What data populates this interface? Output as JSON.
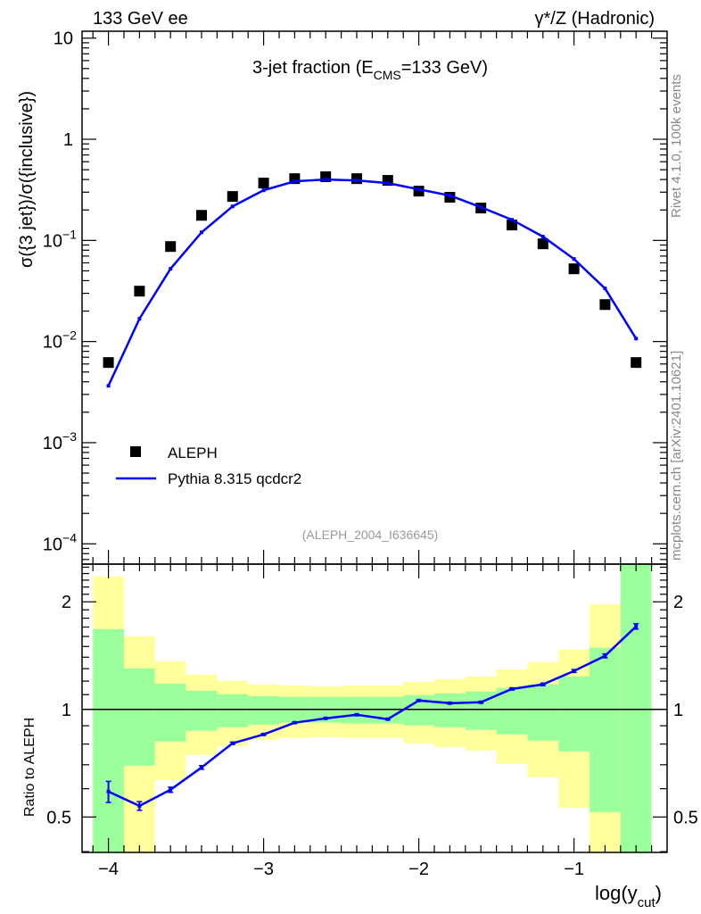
{
  "header": {
    "left": "133 GeV ee",
    "right": "γ*/Z (Hadronic)"
  },
  "side_text": {
    "rivet": "Rivet 4.1.0,  100k events",
    "mcplots": "mcplots.cern.ch [arXiv:2401.10621]"
  },
  "watermark": "(ALEPH_2004_I636645)",
  "colors": {
    "data": "#000000",
    "mc": "#0000ff",
    "stat_band": "#9bff9b",
    "total_band": "#ffff9b"
  },
  "chart_data": [
    {
      "type": "scatter",
      "title_main": "3-jet fraction (E",
      "title_sub": "CMS",
      "title_end": "=133 GeV)",
      "ylabel": "σ({3 jet})/σ({inclusive})",
      "yscale": "log",
      "ylim": [
        6.3e-05,
        11.7
      ],
      "xlim": [
        -4.17,
        -0.4
      ],
      "ytick_labels": [
        {
          "value": 10,
          "label": "10"
        },
        {
          "value": 1,
          "label": "1"
        },
        {
          "value": 0.1,
          "label": "10",
          "exp": "−1"
        },
        {
          "value": 0.01,
          "label": "10",
          "exp": "−2"
        },
        {
          "value": 0.001,
          "label": "10",
          "exp": "−3"
        },
        {
          "value": 0.0001,
          "label": "10",
          "exp": "−4"
        }
      ],
      "legend": {
        "position": "bottom-left",
        "entries": [
          "ALEPH",
          "Pythia 8.315 qcdcr2"
        ]
      },
      "x": [
        -4.0,
        -3.8,
        -3.6,
        -3.4,
        -3.2,
        -3.0,
        -2.8,
        -2.6,
        -2.4,
        -2.2,
        -2.0,
        -1.8,
        -1.6,
        -1.4,
        -1.2,
        -1.0,
        -0.8,
        -0.6
      ],
      "series": [
        {
          "name": "ALEPH",
          "values": [
            0.0062,
            0.0315,
            0.087,
            0.177,
            0.272,
            0.369,
            0.408,
            0.426,
            0.408,
            0.392,
            0.307,
            0.267,
            0.209,
            0.142,
            0.0925,
            0.0524,
            0.0232,
            0.0062
          ]
        },
        {
          "name": "Pythia 8.315 qcdcr2",
          "values": [
            0.00365,
            0.0168,
            0.0524,
            0.12,
            0.217,
            0.313,
            0.384,
            0.4,
            0.392,
            0.369,
            0.32,
            0.278,
            0.213,
            0.16,
            0.109,
            0.0655,
            0.0335,
            0.0107
          ]
        }
      ]
    },
    {
      "type": "line",
      "ylabel": "Ratio to ALEPH",
      "xlabel_main": "log(y",
      "xlabel_sub": "cut",
      "xlabel_end": ")",
      "yscale": "log",
      "ylim": [
        0.398,
        2.55
      ],
      "xlim": [
        -4.17,
        -0.4
      ],
      "xtick_labels": [
        {
          "value": -4,
          "label": "−4"
        },
        {
          "value": -3,
          "label": "−3"
        },
        {
          "value": -2,
          "label": "−2"
        },
        {
          "value": -1,
          "label": "−1"
        }
      ],
      "ytick_labels": [
        {
          "value": 2,
          "label": "2"
        },
        {
          "value": 1,
          "label": "1"
        },
        {
          "value": 0.5,
          "label": "0.5"
        }
      ],
      "bin_edges": [
        -4.1,
        -3.9,
        -3.7,
        -3.5,
        -3.3,
        -3.1,
        -2.9,
        -2.7,
        -2.5,
        -2.3,
        -2.1,
        -1.9,
        -1.7,
        -1.5,
        -1.3,
        -1.1,
        -0.9,
        -0.7,
        -0.5
      ],
      "total_band_upper": [
        2.357,
        1.602,
        1.364,
        1.252,
        1.202,
        1.175,
        1.168,
        1.161,
        1.168,
        1.168,
        1.195,
        1.216,
        1.237,
        1.295,
        1.357,
        1.47,
        1.971,
        3.0
      ],
      "total_band_lower": [
        0.3,
        0.3,
        0.635,
        0.746,
        0.79,
        0.822,
        0.832,
        0.837,
        0.832,
        0.832,
        0.804,
        0.785,
        0.767,
        0.704,
        0.646,
        0.531,
        0.3,
        0.3
      ],
      "stat_band_upper": [
        1.678,
        1.303,
        1.181,
        1.128,
        1.103,
        1.09,
        1.084,
        1.084,
        1.084,
        1.084,
        1.096,
        1.109,
        1.122,
        1.148,
        1.175,
        1.237,
        1.487,
        3.0
      ],
      "stat_band_lower": [
        0.3,
        0.696,
        0.813,
        0.871,
        0.891,
        0.907,
        0.918,
        0.918,
        0.912,
        0.912,
        0.902,
        0.891,
        0.876,
        0.851,
        0.818,
        0.763,
        0.516,
        0.3
      ],
      "x": [
        -4.0,
        -3.8,
        -3.6,
        -3.4,
        -3.2,
        -3.0,
        -2.8,
        -2.6,
        -2.4,
        -2.2,
        -2.0,
        -1.8,
        -1.6,
        -1.4,
        -1.2,
        -1.0,
        -0.8,
        -0.6
      ],
      "series": [
        {
          "name": "Pythia 8.315 qcdcr2",
          "values": [
            0.589,
            0.537,
            0.596,
            0.688,
            0.804,
            0.851,
            0.918,
            0.944,
            0.966,
            0.939,
            1.059,
            1.041,
            1.047,
            1.141,
            1.175,
            1.281,
            1.412,
            1.707
          ],
          "errors": [
            0.04,
            0.015,
            0.01,
            0.008,
            0.006,
            0.005,
            0.004,
            0.004,
            0.004,
            0.004,
            0.005,
            0.005,
            0.006,
            0.008,
            0.01,
            0.012,
            0.018,
            0.03
          ]
        }
      ]
    }
  ]
}
